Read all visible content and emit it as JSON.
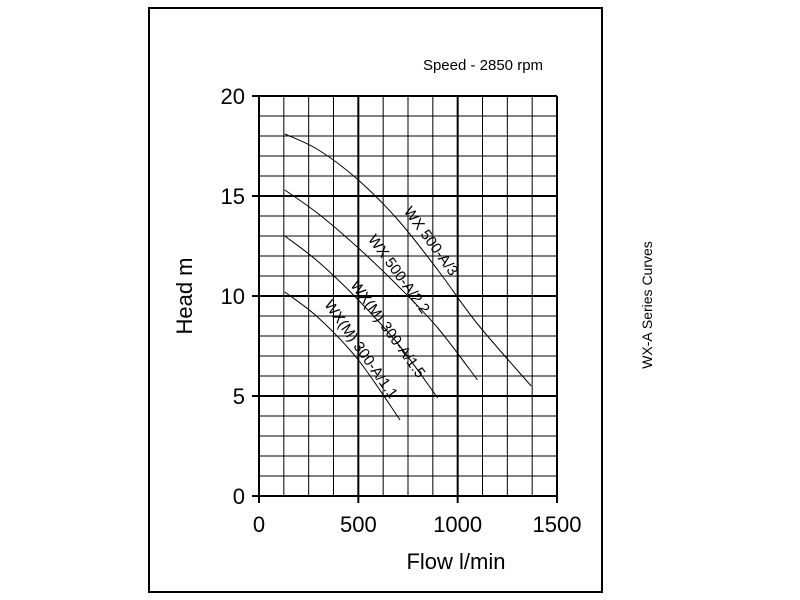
{
  "chart_data": {
    "type": "line",
    "title": "",
    "annotation": "Speed - 2850 rpm",
    "side_title": "WX-A Series Curves",
    "xlabel": "Flow l/min",
    "ylabel": "Head m",
    "xlim": [
      0,
      1500
    ],
    "ylim": [
      0,
      20
    ],
    "x_major_ticks": [
      0,
      500,
      1000,
      1500
    ],
    "y_major_ticks": [
      0,
      5,
      10,
      15,
      20
    ],
    "x_minor_step": 125,
    "y_minor_step": 1,
    "grid": true,
    "series": [
      {
        "name": "WX 500-A/3",
        "points": [
          [
            130,
            18.1
          ],
          [
            300,
            17.3
          ],
          [
            500,
            15.8
          ],
          [
            700,
            13.8
          ],
          [
            900,
            11.3
          ],
          [
            1100,
            8.6
          ],
          [
            1370,
            5.5
          ]
        ]
      },
      {
        "name": "WX 500-A/2.2",
        "points": [
          [
            130,
            15.3
          ],
          [
            300,
            14.1
          ],
          [
            500,
            12.4
          ],
          [
            700,
            10.5
          ],
          [
            900,
            8.4
          ],
          [
            1100,
            5.8
          ]
        ]
      },
      {
        "name": "WX(M) 300-A/1.5",
        "points": [
          [
            130,
            13.0
          ],
          [
            300,
            11.7
          ],
          [
            500,
            9.8
          ],
          [
            700,
            7.6
          ],
          [
            900,
            4.9
          ]
        ]
      },
      {
        "name": "WX(M) 300-A/1.1",
        "points": [
          [
            130,
            10.2
          ],
          [
            300,
            8.9
          ],
          [
            500,
            6.8
          ],
          [
            710,
            3.8
          ]
        ]
      }
    ],
    "curve_labels": [
      {
        "text": "WX 500-A/3"
      },
      {
        "text": "WX 500-A/2.2"
      },
      {
        "text": "WX(M) 300-A/1.5"
      },
      {
        "text": "WX(M) 300-A/1.1"
      }
    ]
  }
}
